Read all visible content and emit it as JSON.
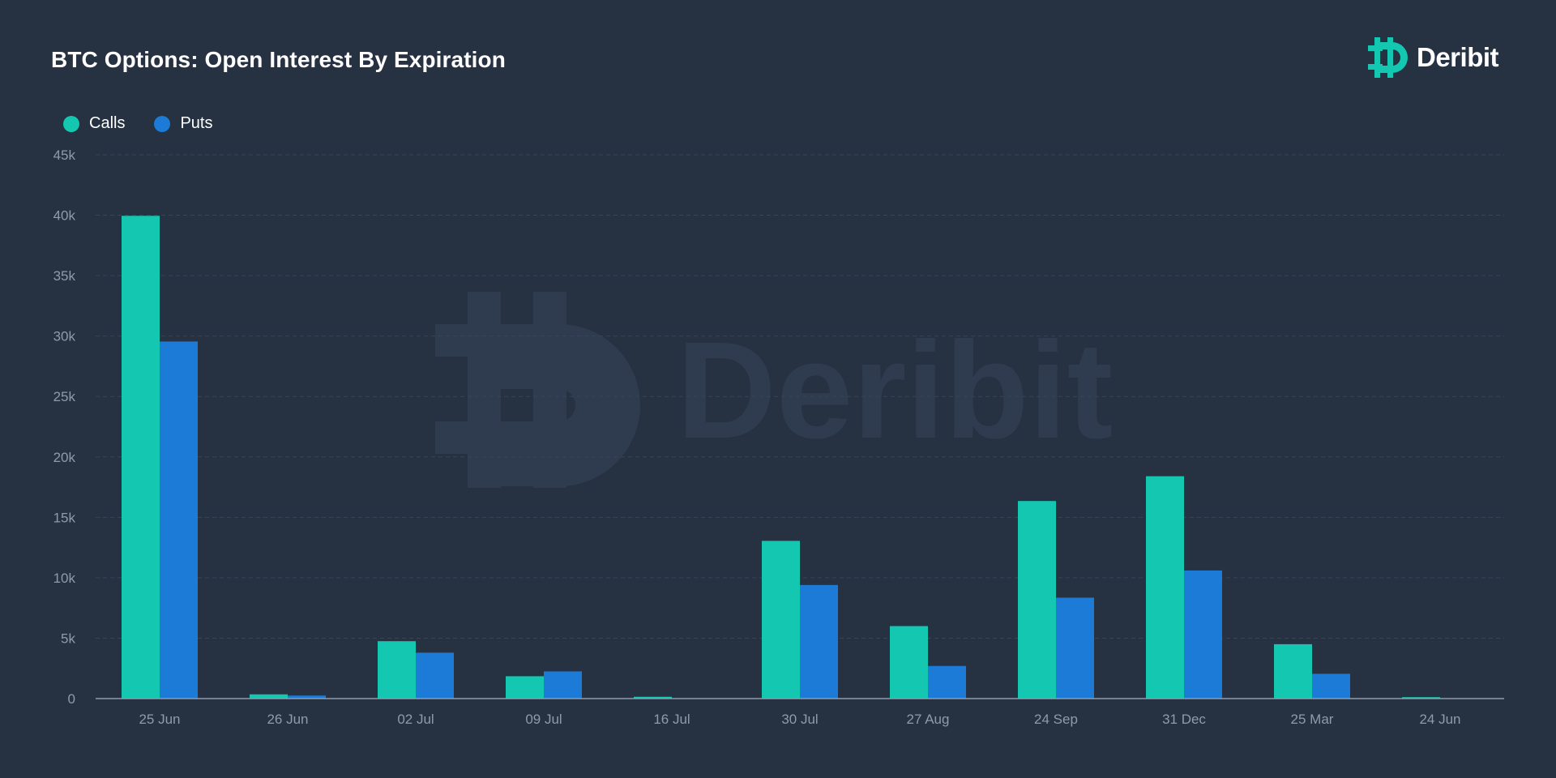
{
  "brand": {
    "name": "Deribit",
    "accent": "#13c7b0",
    "watermark_color": "#2f3c4f"
  },
  "chart_data": {
    "type": "bar",
    "title": "BTC Options: Open Interest By Expiration",
    "xlabel": "",
    "ylabel": "",
    "categories": [
      "25 Jun",
      "26 Jun",
      "02 Jul",
      "09 Jul",
      "16 Jul",
      "30 Jul",
      "27 Aug",
      "24 Sep",
      "31 Dec",
      "25 Mar",
      "24 Jun"
    ],
    "series": [
      {
        "name": "Calls",
        "color": "#13c7b0",
        "values": [
          39950,
          350,
          4750,
          1850,
          150,
          13050,
          6000,
          16350,
          18400,
          4500,
          120
        ]
      },
      {
        "name": "Puts",
        "color": "#1b7bd6",
        "values": [
          29550,
          250,
          3800,
          2250,
          0,
          9400,
          2700,
          8350,
          10600,
          2050,
          0
        ]
      }
    ],
    "ylim": [
      0,
      45000
    ],
    "yticks": [
      0,
      5000,
      10000,
      15000,
      20000,
      25000,
      30000,
      35000,
      40000,
      45000
    ],
    "ytick_labels": [
      "0",
      "5k",
      "10k",
      "15k",
      "20k",
      "25k",
      "30k",
      "35k",
      "40k",
      "45k"
    ],
    "grid": true,
    "legend": "top-left"
  }
}
